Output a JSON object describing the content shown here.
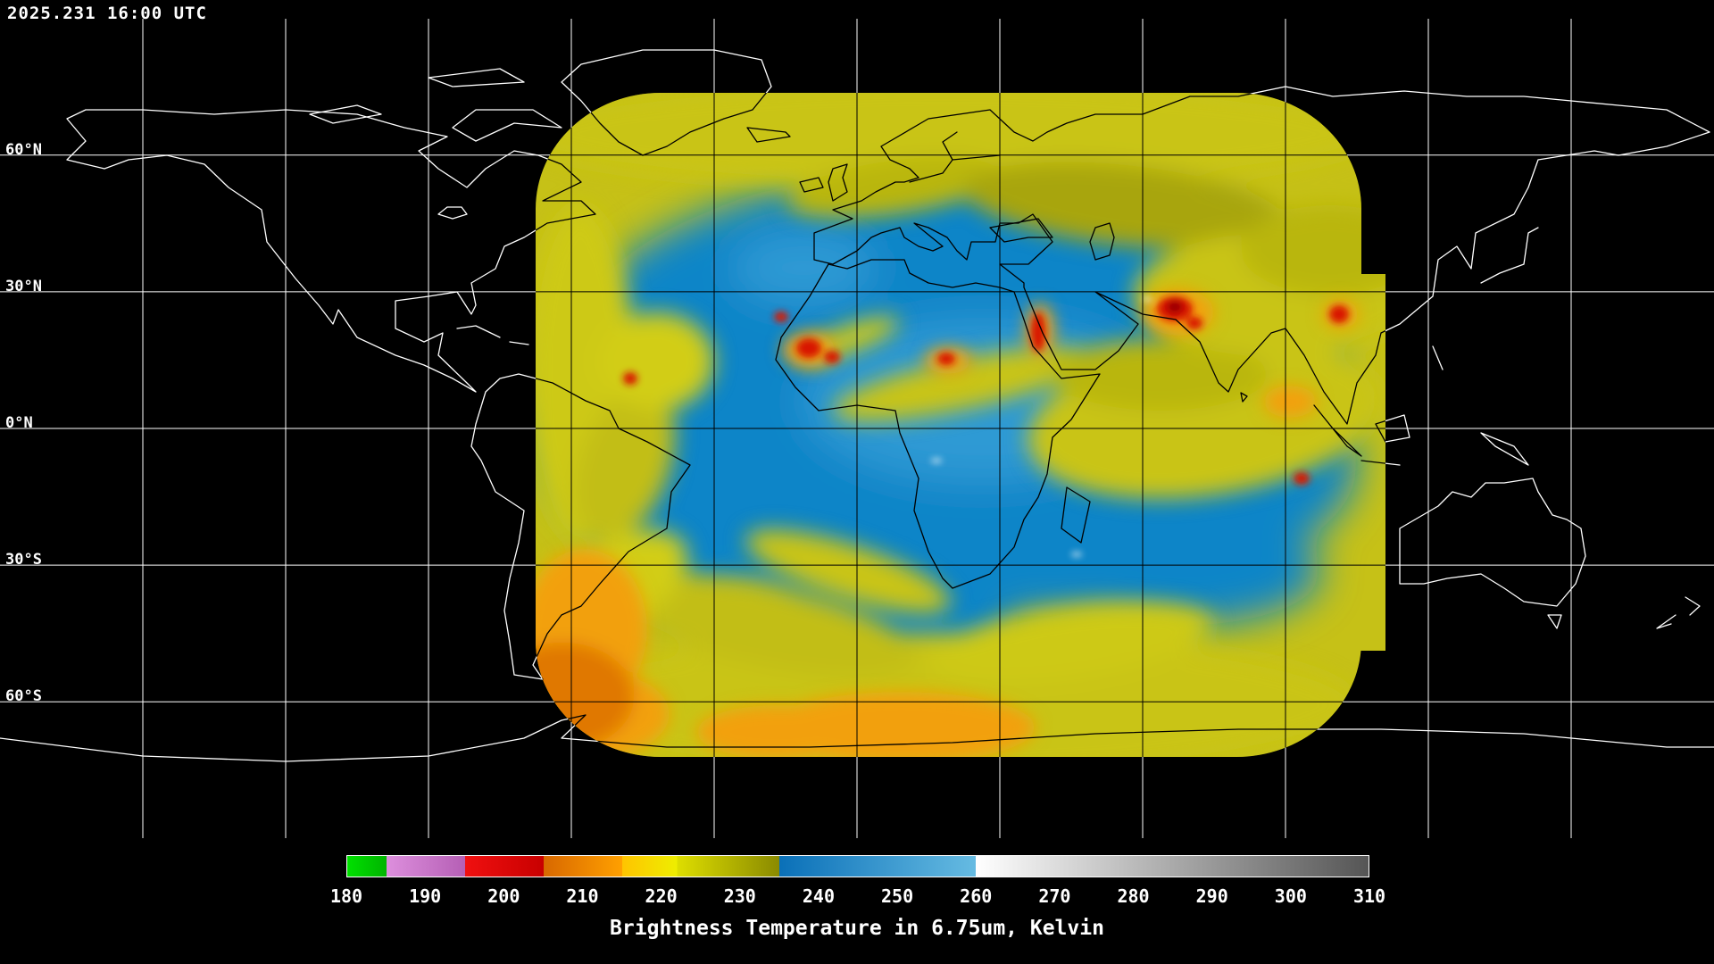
{
  "header": {
    "timestamp": "2025.231 16:00 UTC"
  },
  "map": {
    "latitude_labels": [
      {
        "text": "60°N",
        "lat": 60
      },
      {
        "text": "30°N",
        "lat": 30
      },
      {
        "text": "0°N",
        "lat": 0
      },
      {
        "text": "30°S",
        "lat": -30
      },
      {
        "text": "60°S",
        "lat": -60
      }
    ],
    "graticule_spacing_deg": 30,
    "coastline_color": "#ffffff",
    "background_color": "#000000"
  },
  "colorbar": {
    "caption": "Brightness Temperature in 6.75um, Kelvin",
    "min": 180,
    "max": 310,
    "ticks": [
      "180",
      "190",
      "200",
      "210",
      "220",
      "230",
      "240",
      "250",
      "260",
      "270",
      "280",
      "290",
      "300",
      "310"
    ],
    "segments": [
      {
        "from": 180,
        "to": 185,
        "color_start": "#00e000",
        "color_end": "#00b400"
      },
      {
        "from": 185,
        "to": 195,
        "color_start": "#dd8fdd",
        "color_end": "#b55fb5"
      },
      {
        "from": 195,
        "to": 205,
        "color_start": "#f01010",
        "color_end": "#c80000"
      },
      {
        "from": 205,
        "to": 215,
        "color_start": "#d86800",
        "color_end": "#ffa000"
      },
      {
        "from": 215,
        "to": 222,
        "color_start": "#ffc400",
        "color_end": "#eeee00"
      },
      {
        "from": 222,
        "to": 235,
        "color_start": "#dede00",
        "color_end": "#8a8a00"
      },
      {
        "from": 235,
        "to": 260,
        "color_start": "#0a70b8",
        "color_end": "#66bbe2"
      },
      {
        "from": 260,
        "to": 310,
        "color_start": "#ffffff",
        "color_end": "#555555"
      }
    ]
  },
  "chart_data": {
    "type": "heatmap",
    "title": "Brightness Temperature in 6.75um, Kelvin",
    "variable": "brightness temperature (water vapor channel)",
    "wavelength_um": 6.75,
    "units": "Kelvin",
    "timestamp_utc": "2025.231 16:00 UTC",
    "projection": "equirectangular world map",
    "lat_ticks": [
      "60°N",
      "30°N",
      "0°N",
      "30°S",
      "60°S"
    ],
    "grid_spacing_deg": 30,
    "colorbar_range": [
      180,
      310
    ],
    "colorbar_ticks": [
      180,
      190,
      200,
      210,
      220,
      230,
      240,
      250,
      260,
      270,
      280,
      290,
      300,
      310
    ],
    "palette": [
      {
        "range": [
          180,
          185
        ],
        "color": "#00dd00",
        "label": "green (coldest)"
      },
      {
        "range": [
          185,
          195
        ],
        "color": "#cc77cc",
        "label": "violet"
      },
      {
        "range": [
          195,
          205
        ],
        "color": "#e00000",
        "label": "red"
      },
      {
        "range": [
          205,
          215
        ],
        "color": "#ee8800",
        "label": "orange"
      },
      {
        "range": [
          215,
          222
        ],
        "color": "#ffcc00",
        "label": "orange-yellow"
      },
      {
        "range": [
          222,
          235
        ],
        "color": "#b8b800",
        "label": "yellow-olive"
      },
      {
        "range": [
          235,
          260
        ],
        "color": "#1488cc",
        "label": "blue"
      },
      {
        "range": [
          260,
          310
        ],
        "color": "#aaaaaa",
        "label": "gradient white to gray (warmest)"
      }
    ],
    "coverage": "Geostationary satellite data swath (rounded-disk footprint) centered over Africa / Europe / Indian Ocean, approx 67W-106E and 72S-74N; dominated by blue (235-260K) with yellow-olive cloud bands, orange and red cold cloud tops near West Africa, Arabia, northern India and the southern storm track",
    "background": "Black global map with white coastlines and 30-degree graticule; coastlines and gridlines drawn in black inside the data swath",
    "legend_position": "bottom"
  }
}
